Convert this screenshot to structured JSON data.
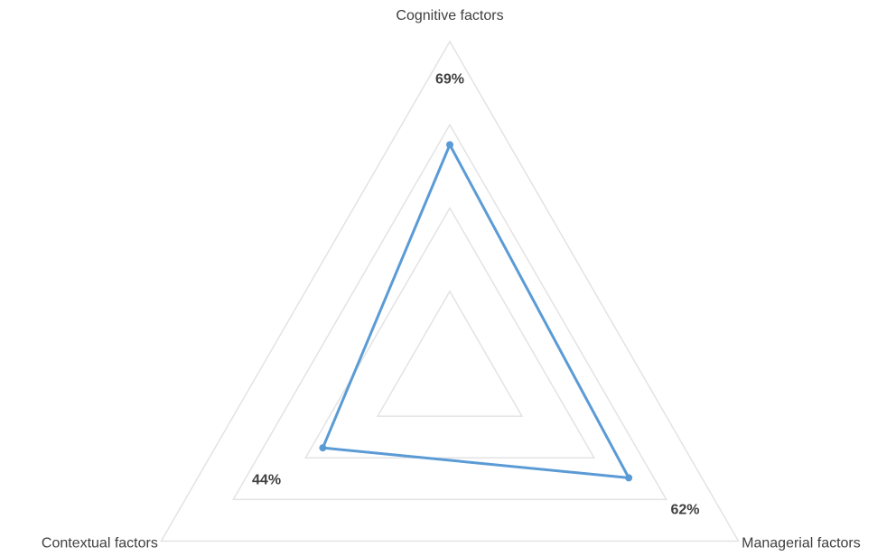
{
  "chart_data": {
    "type": "radar",
    "categories": [
      "Cognitive factors",
      "Managerial factors",
      "Contextual factors"
    ],
    "values": [
      69,
      62,
      44
    ],
    "value_labels": [
      "69%",
      "62%",
      "44%"
    ],
    "color": "#5b9bd5",
    "ylim": [
      0,
      100
    ],
    "yticks": [
      0,
      25,
      50,
      75,
      100
    ],
    "grid": true
  }
}
